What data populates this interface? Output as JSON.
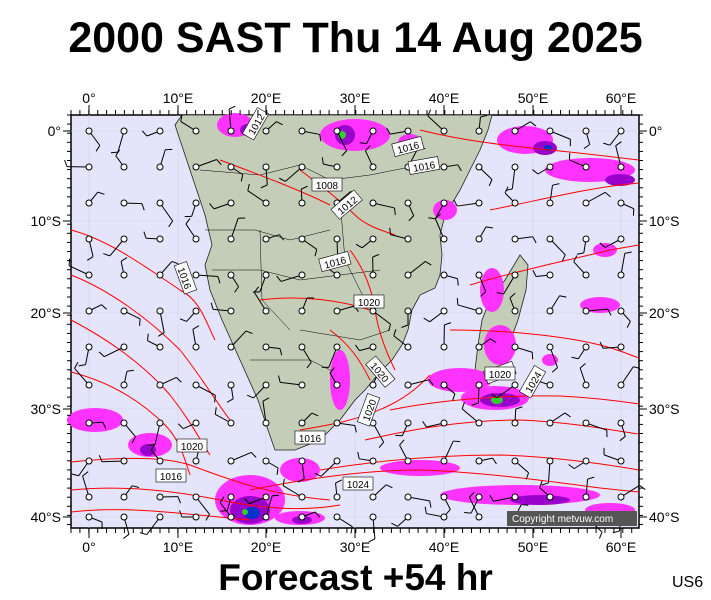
{
  "title": "2000 SAST Thu 14 Aug 2025",
  "footer": "Forecast +54 hr",
  "model_code": "US6",
  "copyright": "Copyright metvuw.com",
  "lon_labels": [
    "0°",
    "10°E",
    "20°E",
    "30°E",
    "40°E",
    "50°E",
    "60°E"
  ],
  "lat_labels": [
    "0°",
    "10°S",
    "20°S",
    "30°S",
    "40°S"
  ],
  "isobar_labels": [
    "1012",
    "1016",
    "1016",
    "1008",
    "1012",
    "1016",
    "1016",
    "1020",
    "1020",
    "1016",
    "1020",
    "1024",
    "1020",
    "1016",
    "1020",
    "1024",
    "1020"
  ],
  "colors": {
    "ocean": "#e4e4fb",
    "land": "#c3cdb8",
    "isobar": "#ff0000",
    "precip_light": "#ff33ff",
    "precip_mid": "#9900cc",
    "precip_heavy": "#0033cc",
    "precip_extreme": "#33cc33"
  }
}
